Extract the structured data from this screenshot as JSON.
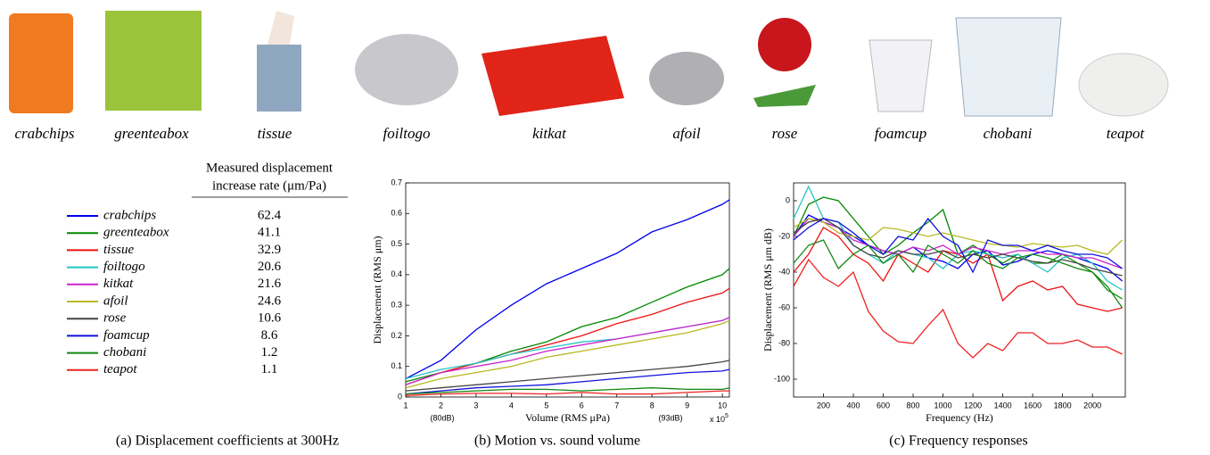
{
  "objects": [
    "crabchips",
    "greenteabox",
    "tissue",
    "foiltogo",
    "kitkat",
    "afoil",
    "rose",
    "foamcup",
    "chobani",
    "teapot"
  ],
  "table": {
    "header": [
      "Measured displacement",
      "increase rate (μm/Pa)"
    ],
    "rows": [
      {
        "name": "crabchips",
        "color": "#0000ee",
        "rate": 62.4
      },
      {
        "name": "greenteabox",
        "color": "#008800",
        "rate": 41.1
      },
      {
        "name": "tissue",
        "color": "#ee1111",
        "rate": 32.9
      },
      {
        "name": "foiltogo",
        "color": "#22c4c4",
        "rate": 20.6
      },
      {
        "name": "kitkat",
        "color": "#cc22cc",
        "rate": 21.6
      },
      {
        "name": "afoil",
        "color": "#b8b822",
        "rate": 24.6
      },
      {
        "name": "rose",
        "color": "#444444",
        "rate": 10.6
      },
      {
        "name": "foamcup",
        "color": "#1111dd",
        "rate": 8.6
      },
      {
        "name": "chobani",
        "color": "#118811",
        "rate": 1.2
      },
      {
        "name": "teapot",
        "color": "#ee2222",
        "rate": 1.1
      }
    ]
  },
  "captions": [
    "(a) Displacement coefficients at 300Hz",
    "(b) Motion vs. sound volume",
    "(c) Frequency responses"
  ],
  "chart_data": [
    {
      "type": "line",
      "xlabel": "Volume (RMS μPa)",
      "ylabel": "Displacement (RMS μm)",
      "annotations": [
        "(80dB)",
        "(93dB)"
      ],
      "multiplier": "x 10",
      "exponent": "5",
      "xlim": [
        1,
        10.2
      ],
      "ylim": [
        0,
        0.7
      ],
      "xticks": [
        1,
        2,
        3,
        4,
        5,
        6,
        7,
        8,
        9,
        10
      ],
      "yticks": [
        0,
        0.1,
        0.2,
        0.3,
        0.4,
        0.5,
        0.6,
        0.7
      ],
      "x": [
        1,
        2,
        3,
        4,
        5,
        6,
        7,
        8,
        9,
        10,
        10.2
      ],
      "series": [
        {
          "color": "#0000ee",
          "values": [
            0.06,
            0.12,
            0.22,
            0.3,
            0.37,
            0.42,
            0.47,
            0.54,
            0.58,
            0.63,
            0.645
          ]
        },
        {
          "color": "#008800",
          "values": [
            0.05,
            0.08,
            0.11,
            0.15,
            0.18,
            0.23,
            0.26,
            0.31,
            0.36,
            0.4,
            0.42
          ]
        },
        {
          "color": "#ee1111",
          "values": [
            0.04,
            0.08,
            0.11,
            0.14,
            0.17,
            0.2,
            0.24,
            0.27,
            0.31,
            0.34,
            0.355
          ]
        },
        {
          "color": "#22c4c4",
          "values": [
            0.06,
            0.09,
            0.11,
            0.14,
            0.16,
            0.18,
            0.19,
            0.21,
            0.23,
            0.25,
            0.26
          ]
        },
        {
          "color": "#cc22cc",
          "values": [
            0.04,
            0.08,
            0.1,
            0.12,
            0.15,
            0.17,
            0.19,
            0.21,
            0.23,
            0.25,
            0.26
          ]
        },
        {
          "color": "#b8b822",
          "values": [
            0.03,
            0.06,
            0.08,
            0.1,
            0.13,
            0.15,
            0.17,
            0.19,
            0.21,
            0.24,
            0.25
          ]
        },
        {
          "color": "#444444",
          "values": [
            0.02,
            0.03,
            0.04,
            0.05,
            0.06,
            0.07,
            0.08,
            0.09,
            0.1,
            0.115,
            0.12
          ]
        },
        {
          "color": "#1111dd",
          "values": [
            0.01,
            0.02,
            0.03,
            0.035,
            0.04,
            0.05,
            0.06,
            0.07,
            0.08,
            0.085,
            0.09
          ]
        },
        {
          "color": "#118811",
          "values": [
            0.01,
            0.015,
            0.02,
            0.025,
            0.025,
            0.02,
            0.025,
            0.03,
            0.025,
            0.025,
            0.03
          ]
        },
        {
          "color": "#ee2222",
          "values": [
            0.005,
            0.01,
            0.012,
            0.012,
            0.01,
            0.015,
            0.01,
            0.01,
            0.015,
            0.02,
            0.02
          ]
        }
      ]
    },
    {
      "type": "line",
      "xlabel": "Frequency (Hz)",
      "ylabel": "Displacement (RMS μm dB)",
      "xlim": [
        0,
        2220
      ],
      "ylim": [
        -110,
        10
      ],
      "xticks": [
        200,
        400,
        600,
        800,
        1000,
        1200,
        1400,
        1600,
        1800,
        2000
      ],
      "yticks": [
        0,
        -20,
        -40,
        -60,
        -80,
        -100
      ],
      "x": [
        0,
        100,
        200,
        300,
        400,
        500,
        600,
        700,
        800,
        900,
        1000,
        1100,
        1200,
        1300,
        1400,
        1500,
        1600,
        1700,
        1800,
        1900,
        2000,
        2100,
        2200
      ],
      "series": [
        {
          "color": "#0000ee",
          "values": [
            -20,
            -8,
            -12,
            -15,
            -20,
            -25,
            -28,
            -30,
            -26,
            -32,
            -34,
            -38,
            -30,
            -28,
            -36,
            -34,
            -30,
            -28,
            -30,
            -32,
            -35,
            -38,
            -45
          ]
        },
        {
          "color": "#008800",
          "values": [
            -20,
            -2,
            2,
            0,
            -10,
            -20,
            -30,
            -25,
            -18,
            -12,
            -5,
            -30,
            -25,
            -30,
            -35,
            -30,
            -35,
            -35,
            -30,
            -35,
            -40,
            -50,
            -55
          ]
        },
        {
          "color": "#ee1111",
          "values": [
            -40,
            -30,
            -15,
            -20,
            -30,
            -35,
            -45,
            -30,
            -35,
            -40,
            -28,
            -30,
            -35,
            -30,
            -56,
            -48,
            -45,
            -50,
            -48,
            -58,
            -60,
            -62,
            -60
          ]
        },
        {
          "color": "#22c4c4",
          "values": [
            -10,
            8,
            -10,
            -12,
            -25,
            -30,
            -35,
            -28,
            -30,
            -32,
            -38,
            -30,
            -28,
            -30,
            -32,
            -30,
            -35,
            -40,
            -32,
            -30,
            -35,
            -45,
            -50
          ]
        },
        {
          "color": "#cc22cc",
          "values": [
            -20,
            -10,
            -12,
            -15,
            -22,
            -25,
            -28,
            -30,
            -26,
            -28,
            -25,
            -30,
            -26,
            -28,
            -30,
            -28,
            -28,
            -30,
            -30,
            -32,
            -32,
            -35,
            -38
          ]
        },
        {
          "color": "#b8b822",
          "values": [
            -15,
            -10,
            -12,
            -18,
            -20,
            -22,
            -15,
            -16,
            -18,
            -20,
            -18,
            -20,
            -22,
            -24,
            -25,
            -26,
            -24,
            -25,
            -26,
            -25,
            -28,
            -30,
            -22
          ]
        },
        {
          "color": "#444444",
          "values": [
            -18,
            -12,
            -10,
            -15,
            -25,
            -30,
            -32,
            -28,
            -30,
            -30,
            -28,
            -32,
            -30,
            -32,
            -30,
            -32,
            -34,
            -35,
            -33,
            -35,
            -38,
            -40,
            -42
          ]
        },
        {
          "color": "#1111dd",
          "values": [
            -22,
            -15,
            -10,
            -12,
            -18,
            -25,
            -30,
            -20,
            -22,
            -10,
            -20,
            -25,
            -40,
            -22,
            -25,
            -25,
            -28,
            -25,
            -28,
            -30,
            -30,
            -32,
            -38
          ]
        },
        {
          "color": "#118811",
          "values": [
            -35,
            -25,
            -22,
            -38,
            -30,
            -25,
            -35,
            -30,
            -40,
            -25,
            -30,
            -35,
            -28,
            -35,
            -38,
            -32,
            -30,
            -32,
            -35,
            -38,
            -40,
            -48,
            -60
          ]
        },
        {
          "color": "#ee2222",
          "values": [
            -48,
            -33,
            -43,
            -48,
            -40,
            -62,
            -73,
            -79,
            -80,
            -70,
            -61,
            -80,
            -88,
            -80,
            -84,
            -74,
            -74,
            -80,
            -80,
            -78,
            -82,
            -82,
            -86
          ]
        }
      ]
    }
  ]
}
